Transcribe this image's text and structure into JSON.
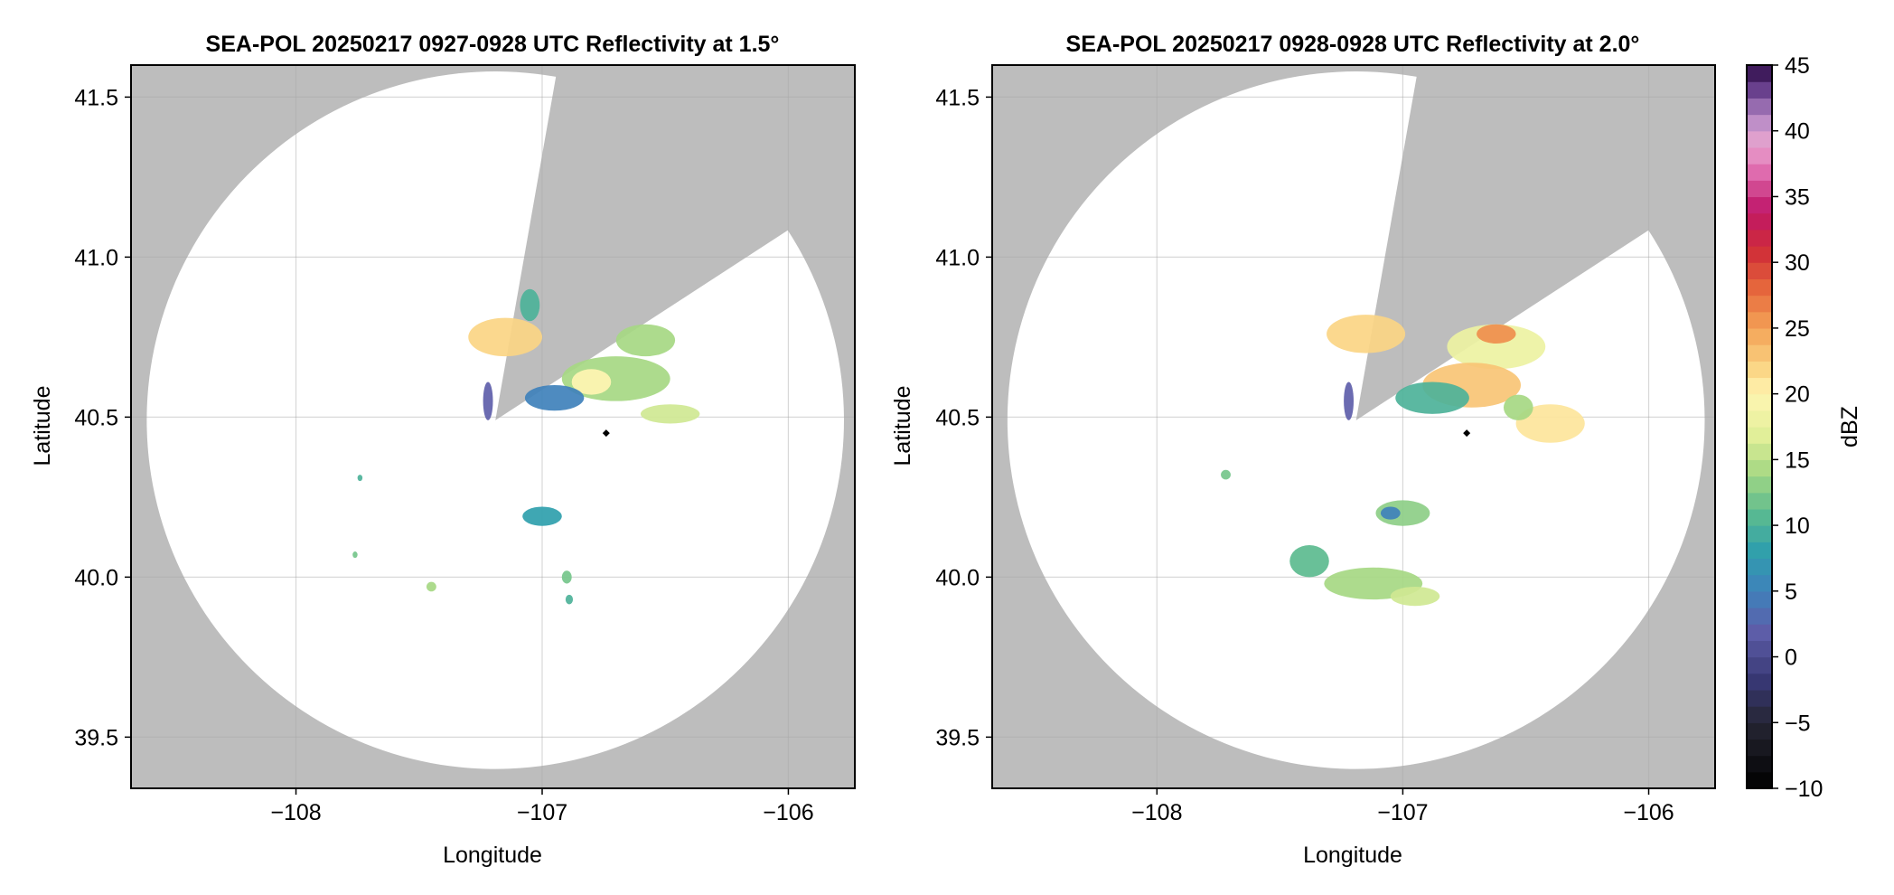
{
  "chart_data": [
    {
      "type": "heatmap",
      "title": "SEA-POL 20250217 0927-0928 UTC Reflectivity at 1.5°",
      "xlabel": "Longitude",
      "ylabel": "Latitude",
      "xlim": [
        -108.67,
        -105.73
      ],
      "ylim": [
        39.34,
        41.6
      ],
      "xticks": [
        -108,
        -107,
        -106
      ],
      "xtick_labels": [
        "−108",
        "−107",
        "−106"
      ],
      "yticks": [
        39.5,
        40.0,
        40.5,
        41.0,
        41.5
      ],
      "ytick_labels": [
        "39.5",
        "40.0",
        "40.5",
        "41.0",
        "41.5"
      ],
      "grid": true,
      "radar_origin": {
        "lon": -107.19,
        "lat": 40.49
      },
      "radar_range_deg_lat": 1.09,
      "blocked_sectors_deg_from_north": [
        [
          10,
          57
        ]
      ],
      "marker": {
        "lon": -106.74,
        "lat": 40.45
      },
      "echo_cells": [
        {
          "lon": -107.15,
          "lat": 40.75,
          "rlon": 0.15,
          "rlat": 0.06,
          "dbz": 22
        },
        {
          "lon": -107.05,
          "lat": 40.85,
          "rlon": 0.04,
          "rlat": 0.05,
          "dbz": 10
        },
        {
          "lon": -106.7,
          "lat": 40.62,
          "rlon": 0.22,
          "rlat": 0.07,
          "dbz": 14
        },
        {
          "lon": -106.8,
          "lat": 40.61,
          "rlon": 0.08,
          "rlat": 0.04,
          "dbz": 20
        },
        {
          "lon": -106.95,
          "lat": 40.56,
          "rlon": 0.12,
          "rlat": 0.04,
          "dbz": 5
        },
        {
          "lon": -106.58,
          "lat": 40.74,
          "rlon": 0.12,
          "rlat": 0.05,
          "dbz": 14
        },
        {
          "lon": -106.48,
          "lat": 40.51,
          "rlon": 0.12,
          "rlat": 0.03,
          "dbz": 16
        },
        {
          "lon": -107.22,
          "lat": 40.55,
          "rlon": 0.02,
          "rlat": 0.06,
          "dbz": 2
        },
        {
          "lon": -107.0,
          "lat": 40.19,
          "rlon": 0.08,
          "rlat": 0.03,
          "dbz": 8
        },
        {
          "lon": -107.74,
          "lat": 40.31,
          "rlon": 0.01,
          "rlat": 0.01,
          "dbz": 10
        },
        {
          "lon": -107.76,
          "lat": 40.07,
          "rlon": 0.01,
          "rlat": 0.01,
          "dbz": 12
        },
        {
          "lon": -107.45,
          "lat": 39.97,
          "rlon": 0.02,
          "rlat": 0.015,
          "dbz": 14
        },
        {
          "lon": -106.9,
          "lat": 40.0,
          "rlon": 0.02,
          "rlat": 0.02,
          "dbz": 12
        },
        {
          "lon": -106.89,
          "lat": 39.93,
          "rlon": 0.015,
          "rlat": 0.015,
          "dbz": 10
        }
      ]
    },
    {
      "type": "heatmap",
      "title": "SEA-POL 20250217 0928-0928 UTC Reflectivity at 2.0°",
      "xlabel": "Longitude",
      "ylabel": "Latitude",
      "xlim": [
        -108.67,
        -105.73
      ],
      "ylim": [
        39.34,
        41.6
      ],
      "xticks": [
        -108,
        -107,
        -106
      ],
      "xtick_labels": [
        "−108",
        "−107",
        "−106"
      ],
      "yticks": [
        39.5,
        40.0,
        40.5,
        41.0,
        41.5
      ],
      "ytick_labels": [
        "39.5",
        "40.0",
        "40.5",
        "41.0",
        "41.5"
      ],
      "grid": true,
      "radar_origin": {
        "lon": -107.19,
        "lat": 40.49
      },
      "radar_range_deg_lat": 1.09,
      "blocked_sectors_deg_from_north": [
        [
          10,
          57
        ]
      ],
      "marker": {
        "lon": -106.74,
        "lat": 40.45
      },
      "echo_cells": [
        {
          "lon": -107.15,
          "lat": 40.76,
          "rlon": 0.16,
          "rlat": 0.06,
          "dbz": 22
        },
        {
          "lon": -106.62,
          "lat": 40.72,
          "rlon": 0.2,
          "rlat": 0.07,
          "dbz": 18
        },
        {
          "lon": -106.62,
          "lat": 40.76,
          "rlon": 0.08,
          "rlat": 0.03,
          "dbz": 26
        },
        {
          "lon": -106.72,
          "lat": 40.6,
          "rlon": 0.2,
          "rlat": 0.07,
          "dbz": 23
        },
        {
          "lon": -106.88,
          "lat": 40.56,
          "rlon": 0.15,
          "rlat": 0.05,
          "dbz": 10
        },
        {
          "lon": -106.4,
          "lat": 40.48,
          "rlon": 0.14,
          "rlat": 0.06,
          "dbz": 21
        },
        {
          "lon": -106.53,
          "lat": 40.53,
          "rlon": 0.06,
          "rlat": 0.04,
          "dbz": 14
        },
        {
          "lon": -107.22,
          "lat": 40.55,
          "rlon": 0.02,
          "rlat": 0.06,
          "dbz": 2
        },
        {
          "lon": -107.0,
          "lat": 40.2,
          "rlon": 0.11,
          "rlat": 0.04,
          "dbz": 13
        },
        {
          "lon": -107.05,
          "lat": 40.2,
          "rlon": 0.04,
          "rlat": 0.02,
          "dbz": 5
        },
        {
          "lon": -107.12,
          "lat": 39.98,
          "rlon": 0.2,
          "rlat": 0.05,
          "dbz": 14
        },
        {
          "lon": -107.38,
          "lat": 40.05,
          "rlon": 0.08,
          "rlat": 0.05,
          "dbz": 11
        },
        {
          "lon": -106.95,
          "lat": 39.94,
          "rlon": 0.1,
          "rlat": 0.03,
          "dbz": 16
        },
        {
          "lon": -107.72,
          "lat": 40.32,
          "rlon": 0.02,
          "rlat": 0.015,
          "dbz": 12
        }
      ]
    }
  ],
  "colorbar": {
    "label": "dBZ",
    "vmin": -10,
    "vmax": 45,
    "ticks": [
      -10,
      -5,
      0,
      5,
      10,
      15,
      20,
      25,
      30,
      35,
      40,
      45
    ],
    "tick_labels": [
      "−10",
      "−5",
      "0",
      "5",
      "10",
      "15",
      "20",
      "25",
      "30",
      "35",
      "40",
      "45"
    ],
    "colormap_stops": [
      {
        "v": -10,
        "c": "#000000"
      },
      {
        "v": -5,
        "c": "#262633"
      },
      {
        "v": -2,
        "c": "#363670"
      },
      {
        "v": 2,
        "c": "#5e5eaa"
      },
      {
        "v": 5,
        "c": "#3f81bb"
      },
      {
        "v": 8,
        "c": "#2f9fac"
      },
      {
        "v": 11,
        "c": "#5cbb8f"
      },
      {
        "v": 14,
        "c": "#a6d883"
      },
      {
        "v": 17,
        "c": "#e4f09a"
      },
      {
        "v": 20,
        "c": "#fff5b2"
      },
      {
        "v": 22,
        "c": "#fbd584"
      },
      {
        "v": 25,
        "c": "#f4a256"
      },
      {
        "v": 28,
        "c": "#e6673c"
      },
      {
        "v": 31,
        "c": "#cf2c37"
      },
      {
        "v": 34,
        "c": "#c0176a"
      },
      {
        "v": 37,
        "c": "#e06fb1"
      },
      {
        "v": 39,
        "c": "#e9a5cf"
      },
      {
        "v": 41,
        "c": "#b58ac6"
      },
      {
        "v": 43,
        "c": "#6d4492"
      },
      {
        "v": 45,
        "c": "#2c0a45"
      }
    ]
  },
  "colors": {
    "masked_background": "#bdbdbd",
    "radar_coverage": "#ffffff",
    "grid": "#a9a9a9",
    "frame": "#000000"
  }
}
